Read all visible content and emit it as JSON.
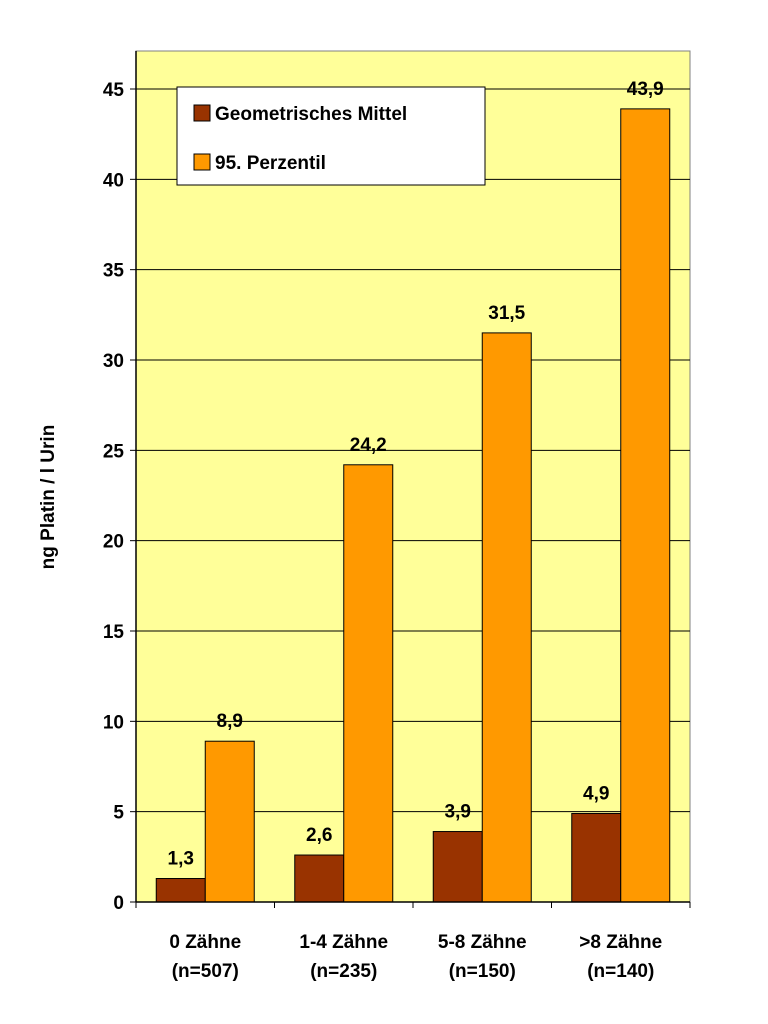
{
  "chart_data": {
    "type": "bar",
    "title": "",
    "xlabel": "",
    "ylabel": "ng Platin / l Urin",
    "ylim": [
      0,
      47
    ],
    "yticks": [
      0,
      5,
      10,
      15,
      20,
      25,
      30,
      35,
      40,
      45
    ],
    "grid": true,
    "legend_position": "top-left",
    "plot_background": "#FFFF99",
    "categories": [
      [
        "0 Zähne",
        "(n=507)"
      ],
      [
        "1-4 Zähne",
        "(n=235)"
      ],
      [
        "5-8 Zähne",
        "(n=150)"
      ],
      [
        ">8 Zähne",
        "(n=140)"
      ]
    ],
    "series": [
      {
        "name": "Geometrisches Mittel",
        "color": "#993300",
        "values": [
          1.3,
          2.6,
          3.9,
          4.9
        ],
        "labels": [
          "1,3",
          "2,6",
          "3,9",
          "4,9"
        ]
      },
      {
        "name": "95. Perzentil",
        "color": "#FF9900",
        "values": [
          8.9,
          24.2,
          31.5,
          43.9
        ],
        "labels": [
          "8,9",
          "24,2",
          "31,5",
          "43,9"
        ]
      }
    ]
  }
}
